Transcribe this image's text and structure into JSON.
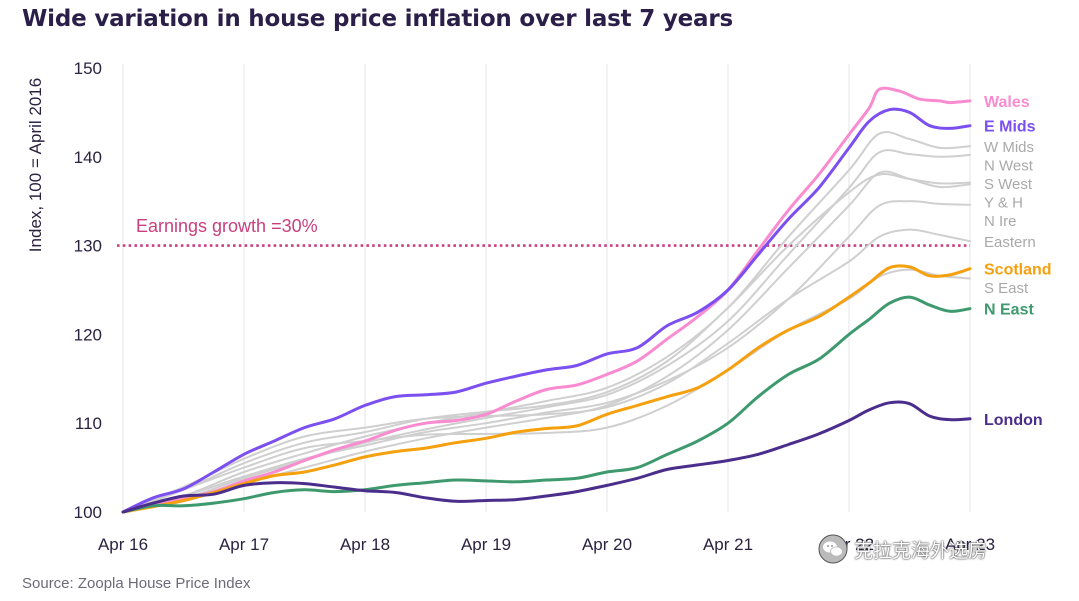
{
  "title": "Wide variation in house price inflation over last 7 years",
  "source": "Source: Zoopla House Price Index",
  "watermark": "克拉克海外选房",
  "watermark_icon": "wechat-icon",
  "chart_data": {
    "type": "line",
    "ylabel": "Index, 100 = April 2016",
    "xlabel": "",
    "ylim": [
      100,
      150
    ],
    "yticks": [
      100,
      110,
      120,
      130,
      140,
      150
    ],
    "xlim": [
      0,
      84
    ],
    "xticks": [
      {
        "x": 0,
        "label": "Apr 16"
      },
      {
        "x": 12,
        "label": "Apr 17"
      },
      {
        "x": 24,
        "label": "Apr 18"
      },
      {
        "x": 36,
        "label": "Apr 19"
      },
      {
        "x": 48,
        "label": "Apr 20"
      },
      {
        "x": 60,
        "label": "Apr 21"
      },
      {
        "x": 72,
        "label": "Apr 22"
      },
      {
        "x": 84,
        "label": "Apr 23"
      }
    ],
    "x_unit": "months since Apr 2016",
    "grid": {
      "x": true,
      "y": false
    },
    "reference_line": {
      "value": 130,
      "label": "Earnings growth =30%",
      "color": "#c8407e"
    },
    "series": [
      {
        "name": "W Mids",
        "color": "#cfcfcf",
        "highlight": false,
        "points": [
          [
            0,
            100
          ],
          [
            6,
            101.8
          ],
          [
            12,
            104.5
          ],
          [
            18,
            106.6
          ],
          [
            24,
            108.5
          ],
          [
            30,
            110
          ],
          [
            36,
            111.2
          ],
          [
            42,
            112.5
          ],
          [
            48,
            114
          ],
          [
            54,
            117.5
          ],
          [
            60,
            123
          ],
          [
            66,
            131
          ],
          [
            72,
            138.5
          ],
          [
            75,
            142.6
          ],
          [
            78,
            142
          ],
          [
            81,
            141
          ],
          [
            84,
            141.2
          ]
        ]
      },
      {
        "name": "N West",
        "color": "#cfcfcf",
        "highlight": false,
        "points": [
          [
            0,
            100
          ],
          [
            6,
            101.5
          ],
          [
            12,
            103.8
          ],
          [
            18,
            105.8
          ],
          [
            24,
            107.8
          ],
          [
            30,
            109.3
          ],
          [
            36,
            110.6
          ],
          [
            42,
            111.8
          ],
          [
            48,
            113.2
          ],
          [
            54,
            116.5
          ],
          [
            60,
            121.5
          ],
          [
            66,
            129
          ],
          [
            72,
            136.5
          ],
          [
            75,
            140.5
          ],
          [
            78,
            140.3
          ],
          [
            81,
            140
          ],
          [
            84,
            140.2
          ]
        ]
      },
      {
        "name": "S West",
        "color": "#cfcfcf",
        "highlight": false,
        "points": [
          [
            0,
            100
          ],
          [
            6,
            102.5
          ],
          [
            12,
            105.5
          ],
          [
            18,
            107.8
          ],
          [
            24,
            109
          ],
          [
            30,
            110.5
          ],
          [
            36,
            111.3
          ],
          [
            42,
            112
          ],
          [
            48,
            113.5
          ],
          [
            54,
            117
          ],
          [
            60,
            123
          ],
          [
            66,
            130
          ],
          [
            72,
            136
          ],
          [
            75,
            138
          ],
          [
            78,
            137.5
          ],
          [
            81,
            137
          ],
          [
            84,
            137.1
          ]
        ]
      },
      {
        "name": "Y & H",
        "color": "#cfcfcf",
        "highlight": false,
        "points": [
          [
            0,
            100
          ],
          [
            6,
            101.2
          ],
          [
            12,
            103.2
          ],
          [
            18,
            105
          ],
          [
            24,
            106.8
          ],
          [
            30,
            108.3
          ],
          [
            36,
            109.5
          ],
          [
            42,
            110.6
          ],
          [
            48,
            112
          ],
          [
            54,
            115.3
          ],
          [
            60,
            120.5
          ],
          [
            66,
            127.5
          ],
          [
            72,
            134.5
          ],
          [
            75,
            138.2
          ],
          [
            78,
            137.5
          ],
          [
            81,
            136.6
          ],
          [
            84,
            136.9
          ]
        ]
      },
      {
        "name": "N Ire",
        "color": "#cfcfcf",
        "highlight": false,
        "points": [
          [
            0,
            100
          ],
          [
            6,
            101.8
          ],
          [
            12,
            104
          ],
          [
            18,
            106
          ],
          [
            24,
            107.5
          ],
          [
            30,
            109
          ],
          [
            36,
            110
          ],
          [
            42,
            111.2
          ],
          [
            48,
            112.3
          ],
          [
            54,
            114.8
          ],
          [
            60,
            118.5
          ],
          [
            66,
            124
          ],
          [
            72,
            131
          ],
          [
            75,
            134.5
          ],
          [
            78,
            135
          ],
          [
            81,
            134.7
          ],
          [
            84,
            134.6
          ]
        ]
      },
      {
        "name": "Eastern",
        "color": "#cfcfcf",
        "highlight": false,
        "points": [
          [
            0,
            100
          ],
          [
            6,
            102.8
          ],
          [
            12,
            106
          ],
          [
            18,
            108.5
          ],
          [
            24,
            109.5
          ],
          [
            30,
            110.5
          ],
          [
            36,
            110.8
          ],
          [
            42,
            111
          ],
          [
            48,
            111.8
          ],
          [
            54,
            114.5
          ],
          [
            60,
            119
          ],
          [
            66,
            124
          ],
          [
            72,
            128.2
          ],
          [
            75,
            131
          ],
          [
            78,
            131.8
          ],
          [
            81,
            131.2
          ],
          [
            84,
            130.5
          ]
        ]
      },
      {
        "name": "S East",
        "color": "#cfcfcf",
        "highlight": false,
        "points": [
          [
            0,
            100
          ],
          [
            6,
            102.5
          ],
          [
            12,
            105
          ],
          [
            18,
            107.2
          ],
          [
            24,
            108
          ],
          [
            30,
            108.7
          ],
          [
            36,
            108.8
          ],
          [
            42,
            108.9
          ],
          [
            48,
            109.5
          ],
          [
            54,
            112
          ],
          [
            60,
            116
          ],
          [
            66,
            120.5
          ],
          [
            72,
            124
          ],
          [
            75,
            126.5
          ],
          [
            78,
            127.3
          ],
          [
            81,
            126.6
          ],
          [
            84,
            126.3
          ]
        ]
      },
      {
        "name": "Wales",
        "color": "#f98bd0",
        "highlight": true,
        "points": [
          [
            0,
            100
          ],
          [
            3,
            100.8
          ],
          [
            6,
            101.5
          ],
          [
            9,
            102.3
          ],
          [
            12,
            103.5
          ],
          [
            15,
            104.5
          ],
          [
            18,
            105.8
          ],
          [
            21,
            107
          ],
          [
            24,
            108
          ],
          [
            27,
            109.2
          ],
          [
            30,
            110
          ],
          [
            33,
            110.3
          ],
          [
            36,
            111
          ],
          [
            39,
            112.5
          ],
          [
            42,
            113.8
          ],
          [
            45,
            114.3
          ],
          [
            48,
            115.5
          ],
          [
            51,
            117
          ],
          [
            54,
            119.5
          ],
          [
            57,
            122
          ],
          [
            60,
            125
          ],
          [
            63,
            129.5
          ],
          [
            66,
            134
          ],
          [
            69,
            138
          ],
          [
            72,
            142.5
          ],
          [
            74,
            145.5
          ],
          [
            75,
            147.6
          ],
          [
            77,
            147.4
          ],
          [
            79,
            146.5
          ],
          [
            81,
            146.3
          ],
          [
            82,
            146.1
          ],
          [
            84,
            146.3
          ]
        ]
      },
      {
        "name": "E Mids",
        "color": "#7b4ff0",
        "highlight": true,
        "points": [
          [
            0,
            100
          ],
          [
            3,
            101.6
          ],
          [
            6,
            102.6
          ],
          [
            9,
            104.5
          ],
          [
            12,
            106.5
          ],
          [
            15,
            108
          ],
          [
            18,
            109.5
          ],
          [
            21,
            110.5
          ],
          [
            24,
            112
          ],
          [
            27,
            113
          ],
          [
            30,
            113.2
          ],
          [
            33,
            113.5
          ],
          [
            36,
            114.5
          ],
          [
            39,
            115.3
          ],
          [
            42,
            116
          ],
          [
            45,
            116.5
          ],
          [
            48,
            117.8
          ],
          [
            51,
            118.5
          ],
          [
            54,
            121
          ],
          [
            57,
            122.5
          ],
          [
            60,
            125
          ],
          [
            63,
            129
          ],
          [
            66,
            133
          ],
          [
            69,
            136.5
          ],
          [
            72,
            141
          ],
          [
            74,
            144
          ],
          [
            76,
            145.3
          ],
          [
            78,
            145
          ],
          [
            80,
            143.5
          ],
          [
            82,
            143.2
          ],
          [
            84,
            143.5
          ]
        ]
      },
      {
        "name": "Scotland",
        "color": "#f5a00f",
        "highlight": true,
        "points": [
          [
            0,
            100
          ],
          [
            3,
            100.6
          ],
          [
            6,
            101.3
          ],
          [
            9,
            102.2
          ],
          [
            12,
            103.2
          ],
          [
            15,
            104.1
          ],
          [
            18,
            104.5
          ],
          [
            21,
            105.3
          ],
          [
            24,
            106.2
          ],
          [
            27,
            106.8
          ],
          [
            30,
            107.2
          ],
          [
            33,
            107.8
          ],
          [
            36,
            108.3
          ],
          [
            39,
            109
          ],
          [
            42,
            109.4
          ],
          [
            45,
            109.7
          ],
          [
            48,
            111
          ],
          [
            51,
            112
          ],
          [
            54,
            113
          ],
          [
            57,
            114
          ],
          [
            60,
            116
          ],
          [
            63,
            118.5
          ],
          [
            66,
            120.5
          ],
          [
            69,
            122
          ],
          [
            72,
            124.2
          ],
          [
            74,
            125.8
          ],
          [
            76,
            127.5
          ],
          [
            78,
            127.6
          ],
          [
            80,
            126.6
          ],
          [
            82,
            126.7
          ],
          [
            84,
            127.4
          ]
        ]
      },
      {
        "name": "N East",
        "color": "#3e9a6e",
        "highlight": true,
        "points": [
          [
            0,
            100
          ],
          [
            3,
            100.7
          ],
          [
            6,
            100.7
          ],
          [
            9,
            101
          ],
          [
            12,
            101.5
          ],
          [
            15,
            102.2
          ],
          [
            18,
            102.5
          ],
          [
            21,
            102.3
          ],
          [
            24,
            102.5
          ],
          [
            27,
            103
          ],
          [
            30,
            103.3
          ],
          [
            33,
            103.6
          ],
          [
            36,
            103.5
          ],
          [
            39,
            103.4
          ],
          [
            42,
            103.6
          ],
          [
            45,
            103.8
          ],
          [
            48,
            104.5
          ],
          [
            51,
            105
          ],
          [
            54,
            106.5
          ],
          [
            57,
            108
          ],
          [
            60,
            110
          ],
          [
            63,
            113
          ],
          [
            66,
            115.5
          ],
          [
            69,
            117.2
          ],
          [
            72,
            120
          ],
          [
            74,
            121.7
          ],
          [
            76,
            123.5
          ],
          [
            78,
            124.2
          ],
          [
            80,
            123.3
          ],
          [
            82,
            122.6
          ],
          [
            84,
            122.9
          ]
        ]
      },
      {
        "name": "London",
        "color": "#4b2d8c",
        "highlight": true,
        "points": [
          [
            0,
            100
          ],
          [
            3,
            101
          ],
          [
            6,
            101.8
          ],
          [
            9,
            102
          ],
          [
            12,
            103
          ],
          [
            15,
            103.3
          ],
          [
            18,
            103.2
          ],
          [
            21,
            102.8
          ],
          [
            24,
            102.4
          ],
          [
            27,
            102.2
          ],
          [
            30,
            101.6
          ],
          [
            33,
            101.2
          ],
          [
            36,
            101.3
          ],
          [
            39,
            101.4
          ],
          [
            42,
            101.8
          ],
          [
            45,
            102.3
          ],
          [
            48,
            103
          ],
          [
            51,
            103.8
          ],
          [
            54,
            104.8
          ],
          [
            57,
            105.3
          ],
          [
            60,
            105.8
          ],
          [
            63,
            106.5
          ],
          [
            66,
            107.6
          ],
          [
            69,
            108.8
          ],
          [
            72,
            110.3
          ],
          [
            74,
            111.5
          ],
          [
            76,
            112.3
          ],
          [
            78,
            112.2
          ],
          [
            80,
            110.8
          ],
          [
            82,
            110.4
          ],
          [
            84,
            110.5
          ]
        ]
      }
    ]
  }
}
